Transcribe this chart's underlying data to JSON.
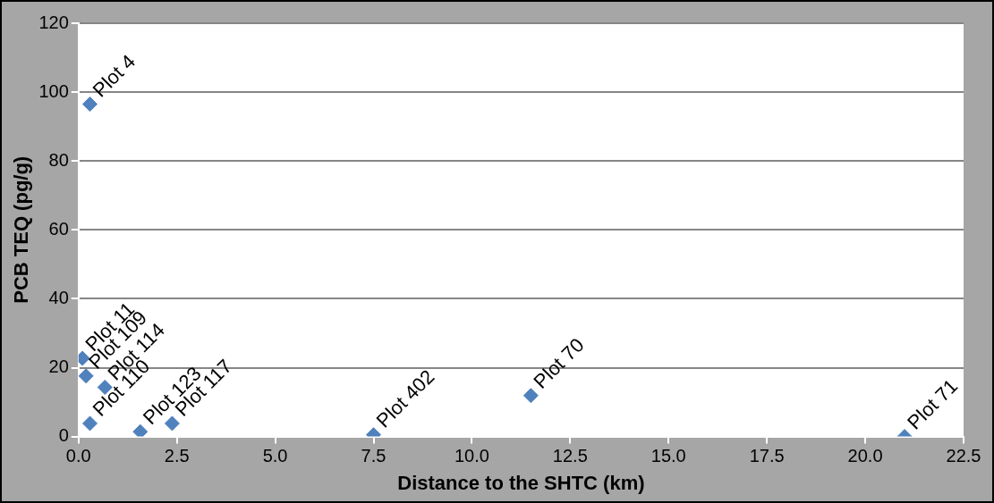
{
  "chart_data": {
    "type": "scatter",
    "xlabel": "Distance to the SHTC (km)",
    "ylabel": "PCB TEQ (pg/g)",
    "x": [
      0.29,
      0.1,
      0.19,
      0.67,
      0.29,
      1.57,
      2.38,
      7.5,
      11.5,
      21.0
    ],
    "series": [
      {
        "color": "#4f81bd",
        "values": [
          96.5,
          22.7,
          17.6,
          14.3,
          3.8,
          1.4,
          3.8,
          0.5,
          11.9,
          0
        ]
      }
    ],
    "xlim": [
      0,
      22.5
    ],
    "xticks": [
      {
        "value": 0,
        "label": "0.0"
      },
      {
        "value": 2.5,
        "label": "2.5"
      },
      {
        "value": 5,
        "label": "5.0"
      },
      {
        "value": 7.5,
        "label": "7.5"
      },
      {
        "value": 10,
        "label": "10.0"
      },
      {
        "value": 12.5,
        "label": "12.5"
      },
      {
        "value": 15,
        "label": "15.0"
      },
      {
        "value": 17.5,
        "label": "17.5"
      },
      {
        "value": 20,
        "label": "20.0"
      },
      {
        "value": 22.5,
        "label": "22.5"
      }
    ],
    "ylim": [
      0,
      120
    ],
    "yticks": [
      0,
      20,
      40,
      60,
      80,
      100,
      120
    ],
    "grid": "y",
    "legend": false,
    "marker": "diamond",
    "annotations": [
      {
        "text": "Plot 4",
        "x": 0.29,
        "y": 96.5
      },
      {
        "text": "Plot 11",
        "x": 0.1,
        "y": 22.7
      },
      {
        "text": "Plot 109",
        "x": 0.19,
        "y": 17.6
      },
      {
        "text": "Plot 114",
        "x": 0.67,
        "y": 14.3
      },
      {
        "text": "Plot 110",
        "x": 0.29,
        "y": 3.8
      },
      {
        "text": "Plot 123",
        "x": 1.57,
        "y": 1.4
      },
      {
        "text": "Plot 117",
        "x": 2.38,
        "y": 3.8
      },
      {
        "text": "Plot 402",
        "x": 7.5,
        "y": 0.5
      },
      {
        "text": "Plot 70",
        "x": 11.5,
        "y": 11.9
      },
      {
        "text": "Plot 71",
        "x": 21.0,
        "y": 0
      }
    ]
  }
}
